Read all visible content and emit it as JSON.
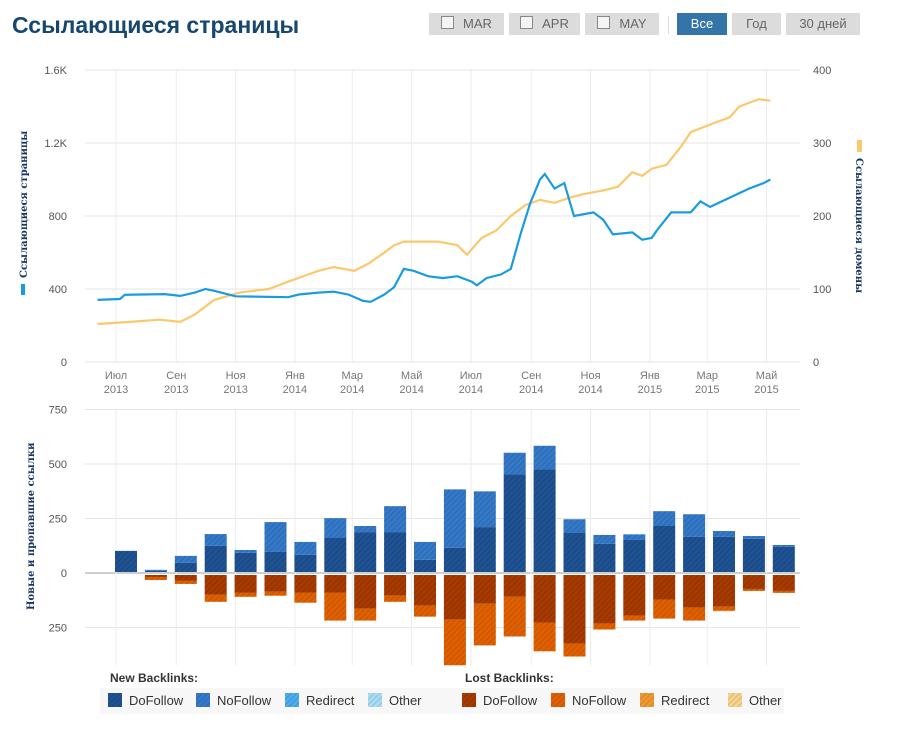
{
  "header": {
    "title": "Ссылающиеся страницы",
    "checkbox_buttons": [
      {
        "label": "MAR",
        "checked": false
      },
      {
        "label": "APR",
        "checked": false
      },
      {
        "label": "MAY",
        "checked": false
      }
    ],
    "range_buttons": [
      {
        "label": "Все",
        "active": true
      },
      {
        "label": "Год",
        "active": false
      },
      {
        "label": "30 дней",
        "active": false
      }
    ]
  },
  "colors": {
    "pages": "#1a9be0",
    "domains": "#fbc86c",
    "new_dofollow": "#1f5292",
    "new_nofollow": "#3478c8",
    "new_redirect": "#4eaaee",
    "new_other": "#a8dcf4",
    "lost_dofollow": "#a63a00",
    "lost_nofollow": "#e06000",
    "lost_redirect": "#f09830",
    "lost_other": "#f5d38a"
  },
  "legend": {
    "new_title": "New Backlinks:",
    "lost_title": "Lost Backlinks:",
    "new_items": [
      {
        "label": "DoFollow",
        "color": "#1f5292"
      },
      {
        "label": "NoFollow",
        "color": "#3478c8"
      },
      {
        "label": "Redirect",
        "color": "#4eaaee"
      },
      {
        "label": "Other",
        "color": "#a8dcf4"
      }
    ],
    "lost_items": [
      {
        "label": "DoFollow",
        "color": "#a63a00"
      },
      {
        "label": "NoFollow",
        "color": "#e06000"
      },
      {
        "label": "Redirect",
        "color": "#f09830"
      },
      {
        "label": "Other",
        "color": "#f5d38a"
      }
    ]
  },
  "chart_data": [
    {
      "type": "line",
      "ylabel": "Ссылающиеся страницы",
      "y2label": "Ссылающиеся домены",
      "ylim": [
        0,
        1600
      ],
      "y2lim": [
        0,
        400
      ],
      "grid": true,
      "yticks": [
        "0",
        "400",
        "800",
        "1.2K",
        "1.6K"
      ],
      "y2ticks": [
        "0",
        "100",
        "200",
        "300",
        "400"
      ],
      "xticks": [
        [
          "Июл",
          "2013"
        ],
        [
          "Сен",
          "2013"
        ],
        [
          "Ноя",
          "2013"
        ],
        [
          "Янв",
          "2014"
        ],
        [
          "Мар",
          "2014"
        ],
        [
          "Май",
          "2014"
        ],
        [
          "Июл",
          "2014"
        ],
        [
          "Сен",
          "2014"
        ],
        [
          "Ноя",
          "2014"
        ],
        [
          "Янв",
          "2015"
        ],
        [
          "Мар",
          "2015"
        ],
        [
          "Май",
          "2015"
        ]
      ],
      "xtick_dates": [
        "2013-07-01",
        "2013-09-01",
        "2013-11-01",
        "2014-01-01",
        "2014-03-01",
        "2014-05-01",
        "2014-07-01",
        "2014-09-01",
        "2014-11-01",
        "2015-01-01",
        "2015-03-01",
        "2015-05-01"
      ],
      "series": [
        {
          "axis": "left",
          "color": "#1a9be0",
          "points": [
            [
              "2013-06-12",
              340
            ],
            [
              "2013-07-05",
              345
            ],
            [
              "2013-07-10",
              368
            ],
            [
              "2013-08-20",
              372
            ],
            [
              "2013-09-05",
              362
            ],
            [
              "2013-09-20",
              380
            ],
            [
              "2013-10-01",
              400
            ],
            [
              "2013-10-10",
              390
            ],
            [
              "2013-11-01",
              360
            ],
            [
              "2013-12-25",
              355
            ],
            [
              "2014-01-05",
              370
            ],
            [
              "2014-01-25",
              380
            ],
            [
              "2014-02-10",
              385
            ],
            [
              "2014-02-25",
              370
            ],
            [
              "2014-03-12",
              335
            ],
            [
              "2014-03-20",
              330
            ],
            [
              "2014-04-03",
              370
            ],
            [
              "2014-04-13",
              410
            ],
            [
              "2014-04-23",
              510
            ],
            [
              "2014-05-03",
              500
            ],
            [
              "2014-05-18",
              470
            ],
            [
              "2014-06-02",
              460
            ],
            [
              "2014-06-17",
              470
            ],
            [
              "2014-07-02",
              440
            ],
            [
              "2014-07-07",
              420
            ],
            [
              "2014-07-17",
              460
            ],
            [
              "2014-08-01",
              480
            ],
            [
              "2014-08-11",
              510
            ],
            [
              "2014-08-21",
              700
            ],
            [
              "2014-08-31",
              870
            ],
            [
              "2014-09-10",
              1000
            ],
            [
              "2014-09-15",
              1030
            ],
            [
              "2014-09-25",
              950
            ],
            [
              "2014-10-05",
              980
            ],
            [
              "2014-10-15",
              800
            ],
            [
              "2014-11-04",
              820
            ],
            [
              "2014-11-14",
              780
            ],
            [
              "2014-11-24",
              700
            ],
            [
              "2014-12-14",
              710
            ],
            [
              "2014-12-24",
              670
            ],
            [
              "2015-01-03",
              680
            ],
            [
              "2015-01-08",
              720
            ],
            [
              "2015-01-23",
              820
            ],
            [
              "2015-02-12",
              820
            ],
            [
              "2015-02-22",
              880
            ],
            [
              "2015-03-04",
              850
            ],
            [
              "2015-03-24",
              900
            ],
            [
              "2015-04-13",
              950
            ],
            [
              "2015-04-28",
              980
            ],
            [
              "2015-05-05",
              1000
            ]
          ]
        },
        {
          "axis": "right",
          "color": "#fbc86c",
          "points": [
            [
              "2013-06-12",
              52
            ],
            [
              "2013-07-15",
              55
            ],
            [
              "2013-08-15",
              58
            ],
            [
              "2013-09-05",
              55
            ],
            [
              "2013-09-20",
              65
            ],
            [
              "2013-10-10",
              85
            ],
            [
              "2013-11-05",
              95
            ],
            [
              "2013-12-05",
              100
            ],
            [
              "2013-12-25",
              110
            ],
            [
              "2014-01-15",
              120
            ],
            [
              "2014-01-25",
              125
            ],
            [
              "2014-02-10",
              130
            ],
            [
              "2014-03-03",
              125
            ],
            [
              "2014-03-18",
              135
            ],
            [
              "2014-04-03",
              150
            ],
            [
              "2014-04-13",
              160
            ],
            [
              "2014-04-23",
              165
            ],
            [
              "2014-05-28",
              165
            ],
            [
              "2014-06-17",
              160
            ],
            [
              "2014-06-27",
              147
            ],
            [
              "2014-07-12",
              170
            ],
            [
              "2014-07-27",
              180
            ],
            [
              "2014-08-11",
              200
            ],
            [
              "2014-08-26",
              215
            ],
            [
              "2014-09-10",
              222
            ],
            [
              "2014-09-25",
              218
            ],
            [
              "2014-10-10",
              225
            ],
            [
              "2014-10-25",
              230
            ],
            [
              "2014-11-14",
              235
            ],
            [
              "2014-11-29",
              240
            ],
            [
              "2014-12-14",
              260
            ],
            [
              "2014-12-24",
              255
            ],
            [
              "2015-01-03",
              265
            ],
            [
              "2015-01-18",
              270
            ],
            [
              "2015-02-02",
              295
            ],
            [
              "2015-02-12",
              315
            ],
            [
              "2015-02-22",
              320
            ],
            [
              "2015-03-09",
              328
            ],
            [
              "2015-03-24",
              335
            ],
            [
              "2015-04-03",
              350
            ],
            [
              "2015-04-13",
              355
            ],
            [
              "2015-04-23",
              360
            ],
            [
              "2015-05-05",
              358
            ]
          ]
        }
      ]
    },
    {
      "type": "bar",
      "stacked": true,
      "ylabel": "Новые и пропавшие ссылки",
      "ylim": [
        -420,
        750
      ],
      "yticks": [
        {
          "value": 750,
          "label": "750"
        },
        {
          "value": 500,
          "label": "500"
        },
        {
          "value": 250,
          "label": "250"
        },
        {
          "value": 0,
          "label": "0"
        },
        {
          "value": -250,
          "label": "250"
        }
      ],
      "categories": [
        "2013-07",
        "2013-08",
        "2013-09",
        "2013-10",
        "2013-11",
        "2013-12",
        "2014-01",
        "2014-02",
        "2014-03",
        "2014-04",
        "2014-05",
        "2014-06",
        "2014-07",
        "2014-08",
        "2014-09",
        "2014-10",
        "2014-11",
        "2014-12",
        "2015-01",
        "2015-02",
        "2015-03",
        "2015-04",
        "2015-05"
      ],
      "new": {
        "DoFollow": [
          97,
          5,
          42,
          120,
          88,
          92,
          79,
          156,
          183,
          183,
          56,
          111,
          206,
          447,
          470,
          179,
          129,
          147,
          211,
          161,
          161,
          152,
          115
        ],
        "NoFollow": [
          0,
          5,
          32,
          54,
          13,
          137,
          59,
          91,
          28,
          119,
          82,
          268,
          164,
          100,
          109,
          63,
          41,
          23,
          68,
          104,
          27,
          13,
          9
        ],
        "Redirect": [
          0,
          0,
          0,
          0,
          0,
          0,
          0,
          0,
          0,
          0,
          0,
          0,
          0,
          0,
          0,
          0,
          0,
          4,
          0,
          0,
          0,
          0,
          0
        ],
        "Other": [
          0,
          0,
          0,
          0,
          0,
          0,
          0,
          0,
          0,
          0,
          0,
          0,
          0,
          0,
          0,
          0,
          0,
          0,
          0,
          0,
          0,
          0,
          0
        ]
      },
      "lost": {
        "DoFollow": [
          0,
          9,
          27,
          91,
          82,
          77,
          82,
          82,
          155,
          95,
          141,
          205,
          132,
          100,
          218,
          314,
          223,
          186,
          114,
          150,
          145,
          64,
          73
        ],
        "NoFollow": [
          0,
          14,
          14,
          32,
          18,
          18,
          45,
          127,
          54,
          28,
          50,
          209,
          191,
          182,
          132,
          59,
          27,
          23,
          86,
          59,
          19,
          9,
          9
        ],
        "Redirect": [
          0,
          0,
          0,
          0,
          0,
          0,
          0,
          0,
          0,
          0,
          0,
          0,
          0,
          0,
          0,
          2,
          0,
          0,
          0,
          0,
          2,
          0,
          0
        ],
        "Other": [
          0,
          0,
          0,
          0,
          0,
          0,
          0,
          0,
          0,
          0,
          0,
          0,
          0,
          0,
          0,
          0,
          0,
          0,
          0,
          0,
          0,
          0,
          0
        ]
      }
    }
  ]
}
